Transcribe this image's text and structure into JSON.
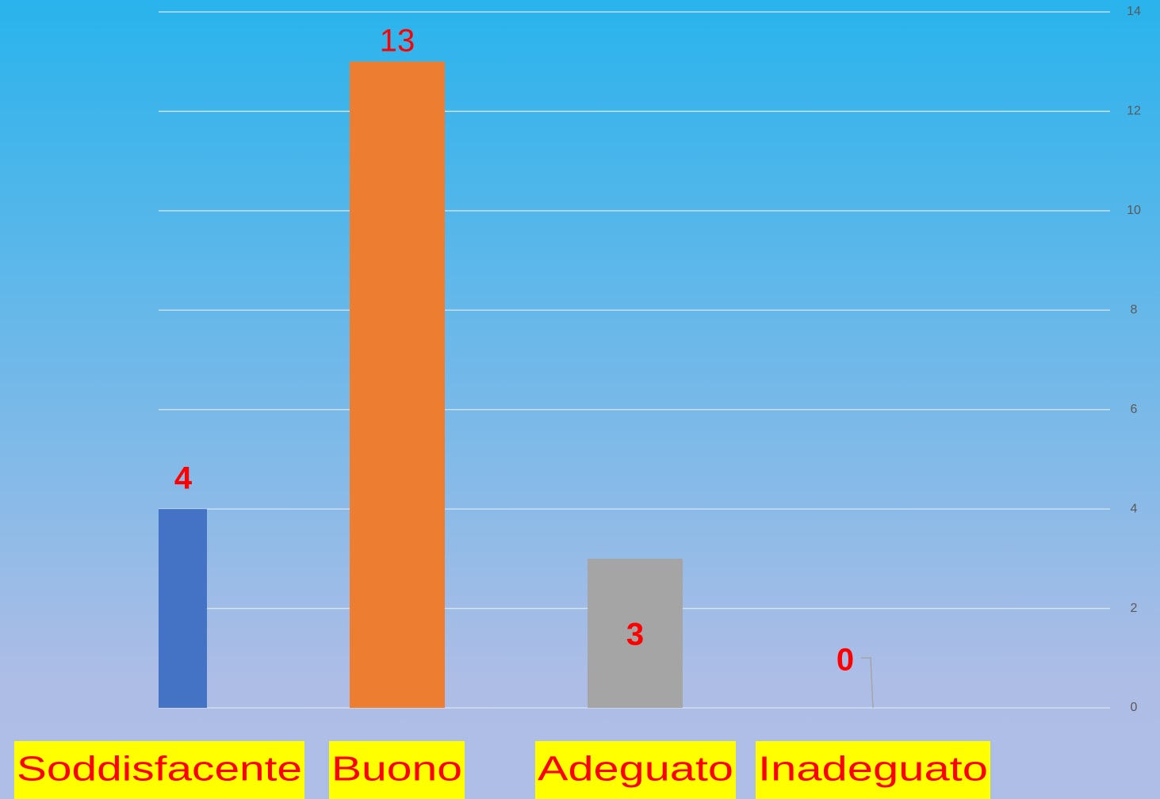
{
  "chart_data": {
    "type": "bar",
    "categories": [
      "Soddisfacente",
      "Buono",
      "Adeguato",
      "Inadeguato"
    ],
    "values": [
      4,
      13,
      3,
      0
    ],
    "colors": [
      "#4472c4",
      "#ed7d31",
      "#a5a5a5",
      "#ffc000"
    ],
    "ylim": [
      0,
      14
    ],
    "yticks": [
      0,
      2,
      4,
      6,
      8,
      10,
      12,
      14
    ],
    "grid": true,
    "y_axis_side": "right"
  }
}
